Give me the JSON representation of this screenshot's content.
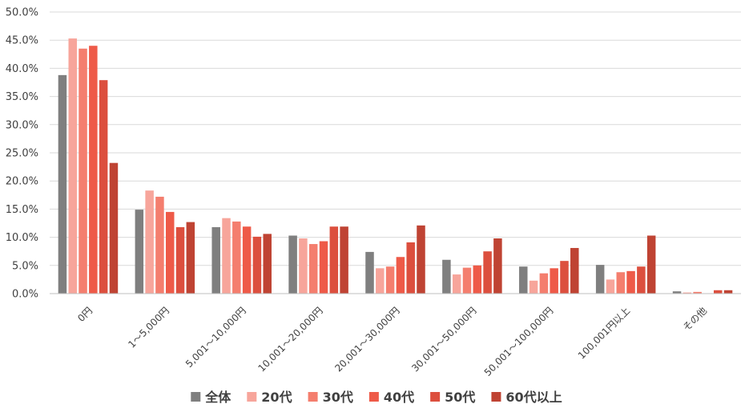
{
  "chart_data": {
    "type": "bar",
    "categories": [
      "0円",
      "1～5,000円",
      "5,001～10,000円",
      "10,001～20,000円",
      "20,001～30,000円",
      "30,001～50,000円",
      "50,001～100,000円",
      "100,001円以上",
      "その他"
    ],
    "series": [
      {
        "name": "全体",
        "color": "#7f7f7f",
        "values": [
          38.8,
          14.9,
          11.8,
          10.3,
          7.4,
          6.0,
          4.8,
          5.1,
          0.4
        ]
      },
      {
        "name": "20代",
        "color": "#f7a59b",
        "values": [
          45.3,
          18.3,
          13.4,
          9.8,
          4.5,
          3.4,
          2.3,
          2.5,
          0.2
        ]
      },
      {
        "name": "30代",
        "color": "#f47e6e",
        "values": [
          43.5,
          17.2,
          12.8,
          8.8,
          4.8,
          4.6,
          3.6,
          3.8,
          0.3
        ]
      },
      {
        "name": "40代",
        "color": "#ee5a48",
        "values": [
          44.0,
          14.5,
          11.9,
          9.3,
          6.5,
          5.0,
          4.5,
          4.0,
          0.0
        ]
      },
      {
        "name": "50代",
        "color": "#dc4f3e",
        "values": [
          37.9,
          11.8,
          10.1,
          11.9,
          9.1,
          7.5,
          5.8,
          4.8,
          0.6
        ]
      },
      {
        "name": "60代以上",
        "color": "#bf4333",
        "values": [
          23.2,
          12.7,
          10.6,
          11.9,
          12.1,
          9.8,
          8.1,
          10.3,
          0.6
        ]
      }
    ],
    "ylim": [
      0,
      50
    ],
    "yticks": [
      "0.0%",
      "5.0%",
      "10.0%",
      "15.0%",
      "20.0%",
      "25.0%",
      "30.0%",
      "35.0%",
      "40.0%",
      "45.0%",
      "50.0%"
    ],
    "grid": true,
    "legend": "bottom"
  }
}
